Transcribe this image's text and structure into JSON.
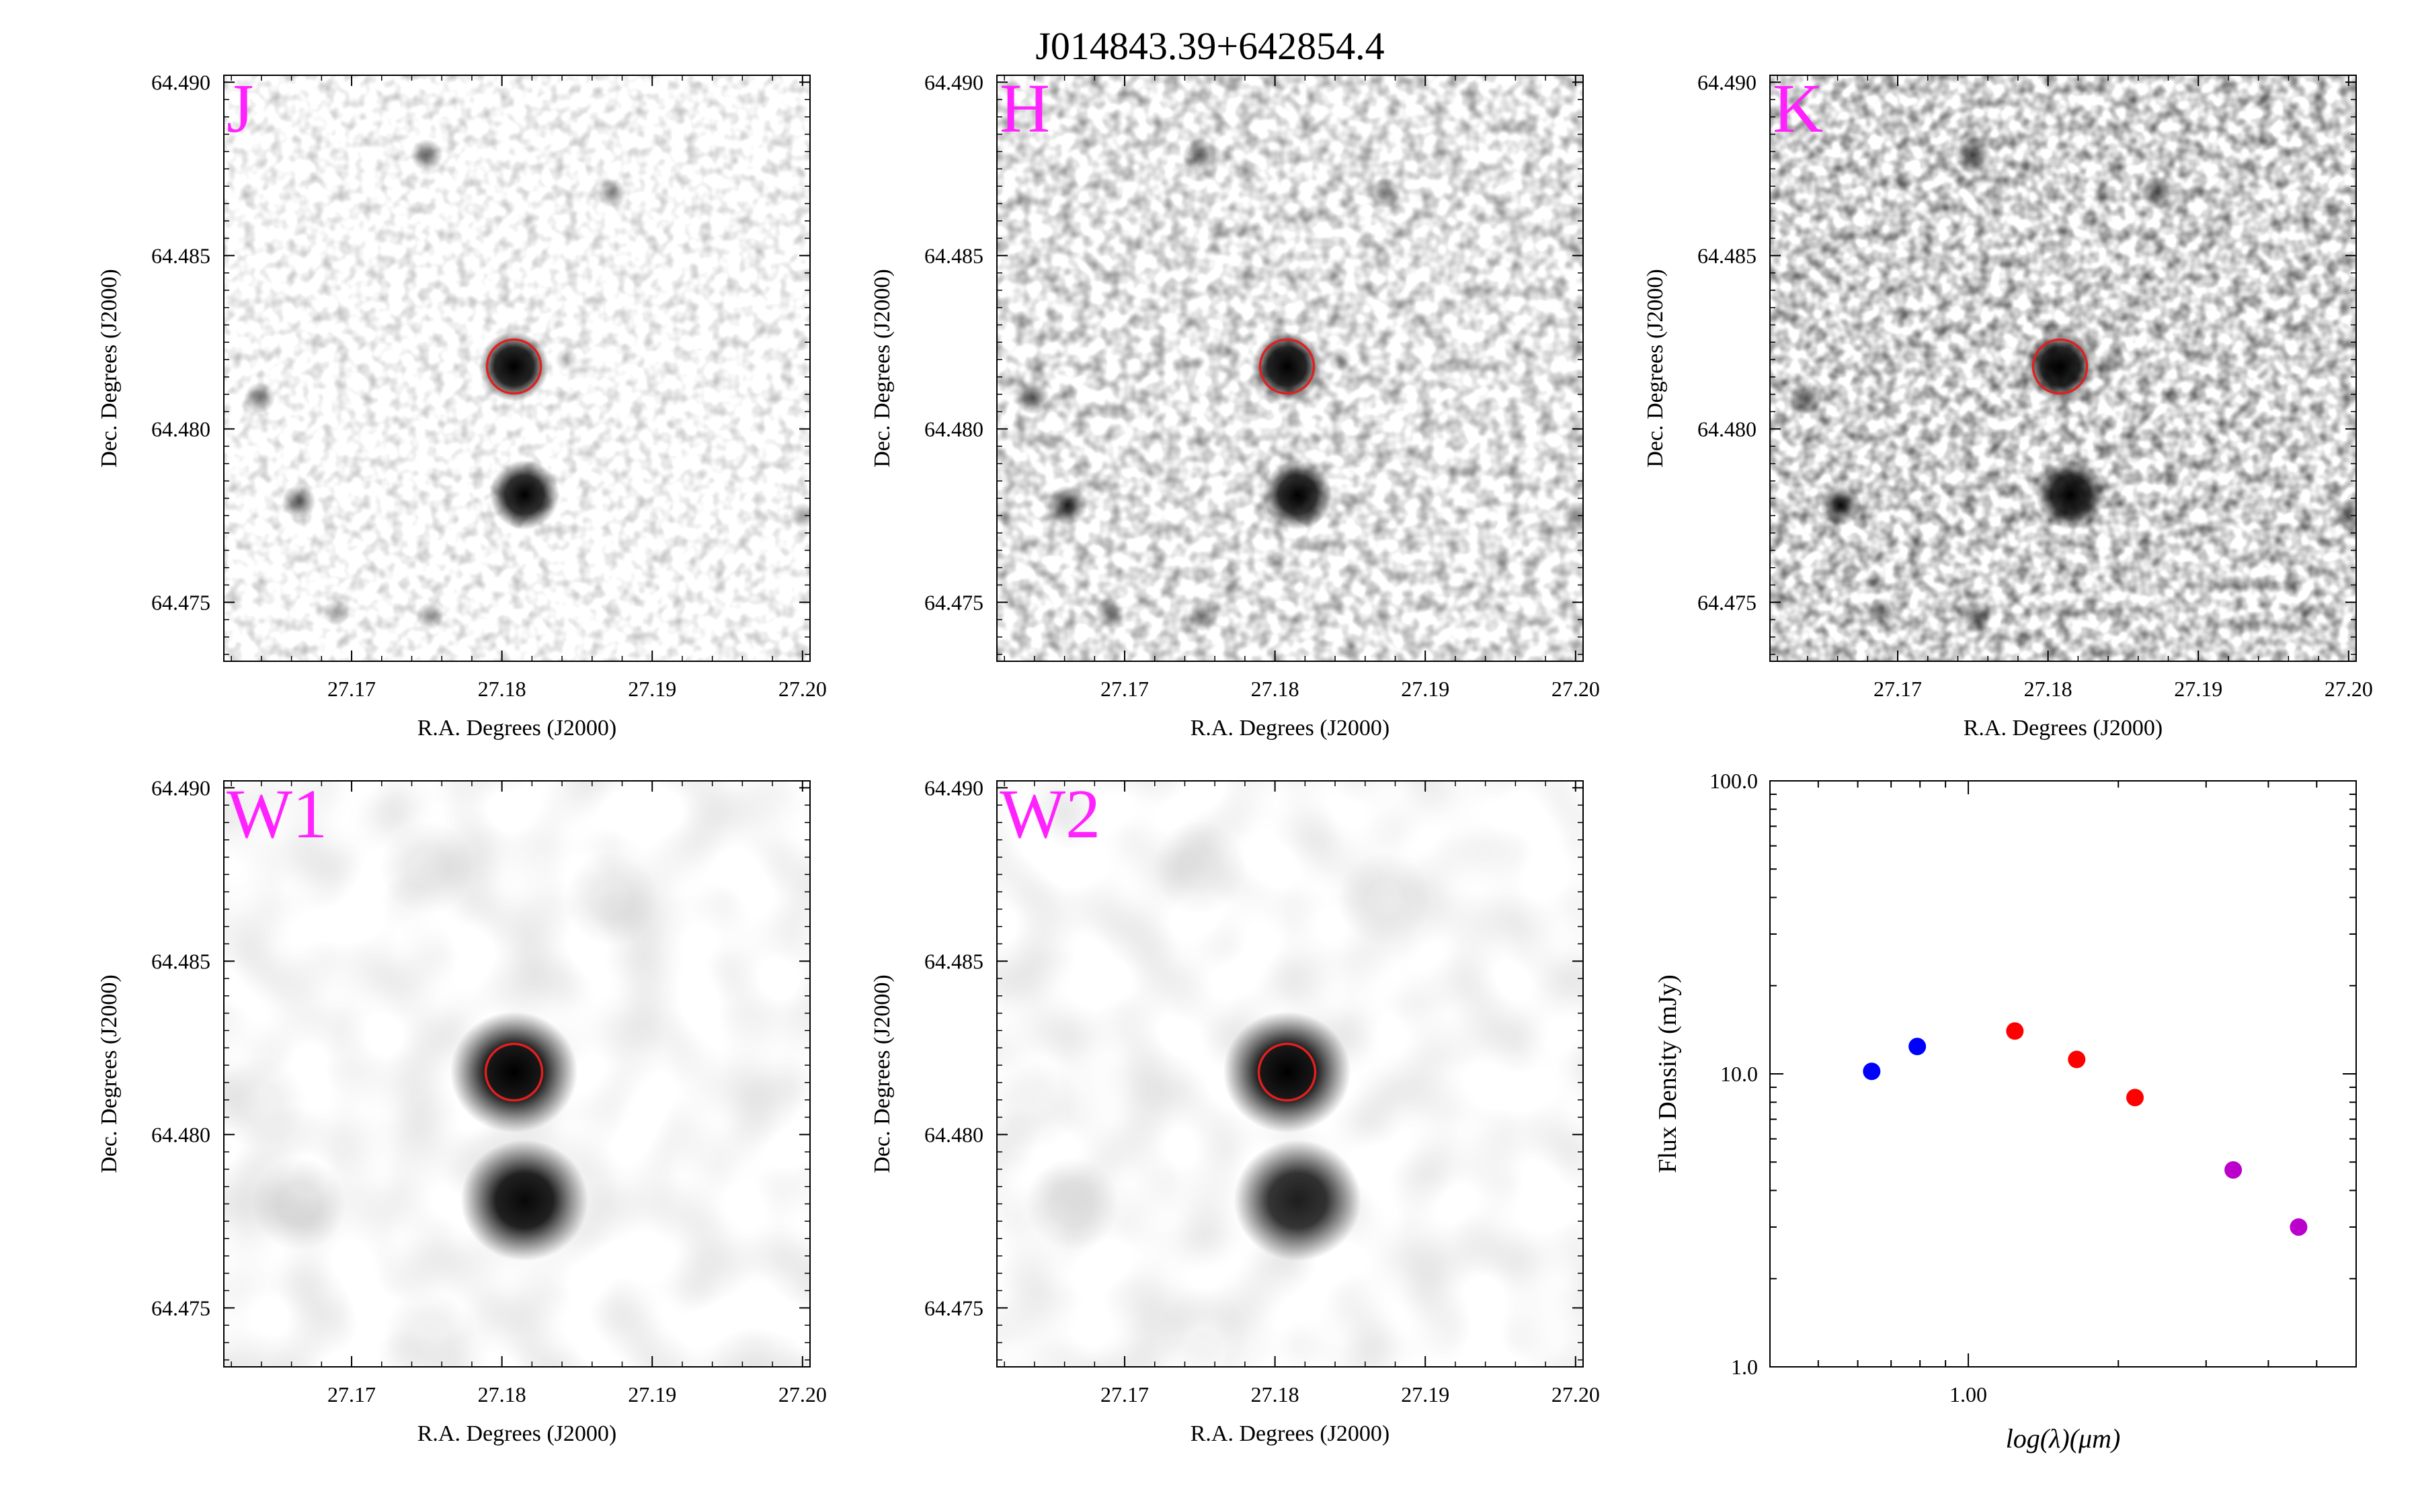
{
  "title": "J014843.39+642854.4",
  "colors": {
    "band_label": "#ff22ff",
    "target_circle": "#e02020",
    "sed_blue": "#0000ff",
    "sed_red": "#ff0000",
    "sed_magenta": "#bb00cc"
  },
  "image_axes": {
    "xlabel": "R.A. Degrees (J2000)",
    "ylabel": "Dec. Degrees (J2000)",
    "xlim": [
      27.1615,
      27.2005
    ],
    "ylim": [
      64.4733,
      64.4902
    ],
    "xticks": [
      "27.17",
      "27.18",
      "27.19",
      "27.20"
    ],
    "yticks": [
      "64.475",
      "64.480",
      "64.485",
      "64.490"
    ],
    "target": {
      "ra": 27.1808,
      "dec": 64.4818
    }
  },
  "chart_data": [
    {
      "type": "heatmap",
      "band": "J",
      "sources": [
        {
          "ra": 27.1808,
          "dec": 64.4818,
          "mag": 1.0
        },
        {
          "ra": 27.1815,
          "dec": 64.4781,
          "mag": 0.95
        },
        {
          "ra": 27.175,
          "dec": 64.4879,
          "mag": 0.55
        },
        {
          "ra": 27.1873,
          "dec": 64.4868,
          "mag": 0.45
        },
        {
          "ra": 27.1639,
          "dec": 64.4809,
          "mag": 0.5
        },
        {
          "ra": 27.1665,
          "dec": 64.4779,
          "mag": 0.6
        },
        {
          "ra": 27.169,
          "dec": 64.4747,
          "mag": 0.35
        },
        {
          "ra": 27.1752,
          "dec": 64.4746,
          "mag": 0.4
        },
        {
          "ra": 27.2,
          "dec": 64.4775,
          "mag": 0.35
        },
        {
          "ra": 27.1843,
          "dec": 64.482,
          "mag": 0.25
        },
        {
          "ra": 27.1857,
          "dec": 64.4793,
          "mag": 0.15
        }
      ]
    },
    {
      "type": "heatmap",
      "band": "H",
      "sources": [
        {
          "ra": 27.1808,
          "dec": 64.4818,
          "mag": 1.0
        },
        {
          "ra": 27.1815,
          "dec": 64.4781,
          "mag": 0.95
        },
        {
          "ra": 27.175,
          "dec": 64.4879,
          "mag": 0.6
        },
        {
          "ra": 27.1873,
          "dec": 64.4868,
          "mag": 0.5
        },
        {
          "ra": 27.1639,
          "dec": 64.4809,
          "mag": 0.6
        },
        {
          "ra": 27.1662,
          "dec": 64.4778,
          "mag": 0.8
        },
        {
          "ra": 27.169,
          "dec": 64.4747,
          "mag": 0.45
        },
        {
          "ra": 27.1752,
          "dec": 64.4746,
          "mag": 0.5
        },
        {
          "ra": 27.2,
          "dec": 64.4775,
          "mag": 0.45
        },
        {
          "ra": 27.1843,
          "dec": 64.482,
          "mag": 0.3
        },
        {
          "ra": 27.1857,
          "dec": 64.4793,
          "mag": 0.2
        }
      ]
    },
    {
      "type": "heatmap",
      "band": "K",
      "sources": [
        {
          "ra": 27.1808,
          "dec": 64.4818,
          "mag": 1.0
        },
        {
          "ra": 27.1815,
          "dec": 64.4781,
          "mag": 0.95
        },
        {
          "ra": 27.175,
          "dec": 64.4879,
          "mag": 0.7
        },
        {
          "ra": 27.1873,
          "dec": 64.4868,
          "mag": 0.6
        },
        {
          "ra": 27.1639,
          "dec": 64.4809,
          "mag": 0.6
        },
        {
          "ra": 27.1662,
          "dec": 64.4778,
          "mag": 0.85
        },
        {
          "ra": 27.169,
          "dec": 64.4747,
          "mag": 0.5
        },
        {
          "ra": 27.1752,
          "dec": 64.4746,
          "mag": 0.55
        },
        {
          "ra": 27.2,
          "dec": 64.4775,
          "mag": 0.55
        },
        {
          "ra": 27.1843,
          "dec": 64.482,
          "mag": 0.35
        },
        {
          "ra": 27.1857,
          "dec": 64.4793,
          "mag": 0.2
        }
      ]
    },
    {
      "type": "heatmap",
      "band": "W1",
      "sources": [
        {
          "ra": 27.1808,
          "dec": 64.4818,
          "mag": 1.0
        },
        {
          "ra": 27.1815,
          "dec": 64.4781,
          "mag": 0.97
        },
        {
          "ra": 27.1665,
          "dec": 64.478,
          "mag": 0.12
        },
        {
          "ra": 27.175,
          "dec": 64.4877,
          "mag": 0.08
        },
        {
          "ra": 27.1873,
          "dec": 64.4868,
          "mag": 0.08
        },
        {
          "ra": 27.1639,
          "dec": 64.4809,
          "mag": 0.06
        },
        {
          "ra": 27.1752,
          "dec": 64.4742,
          "mag": 0.06
        }
      ]
    },
    {
      "type": "heatmap",
      "band": "W2",
      "sources": [
        {
          "ra": 27.1808,
          "dec": 64.4818,
          "mag": 1.0
        },
        {
          "ra": 27.1815,
          "dec": 64.4781,
          "mag": 0.88
        },
        {
          "ra": 27.1665,
          "dec": 64.478,
          "mag": 0.1
        },
        {
          "ra": 27.175,
          "dec": 64.4877,
          "mag": 0.07
        },
        {
          "ra": 27.1873,
          "dec": 64.4868,
          "mag": 0.07
        },
        {
          "ra": 27.1639,
          "dec": 64.4809,
          "mag": 0.05
        },
        {
          "ra": 27.1752,
          "dec": 64.4742,
          "mag": 0.05
        }
      ]
    },
    {
      "type": "scatter",
      "xlabel": "log(λ)(μm)",
      "ylabel": "Flux Density (mJy)",
      "xscale": "log",
      "yscale": "log",
      "xlim": [
        0.4,
        6.0
      ],
      "ylim": [
        1.0,
        100.0
      ],
      "xticklabels": [
        {
          "value": 1.0,
          "label": "1.00"
        }
      ],
      "yticklabels": [
        {
          "value": 1.0,
          "label": "1.0"
        },
        {
          "value": 10.0,
          "label": "10.0"
        },
        {
          "value": 100.0,
          "label": "100.0"
        }
      ],
      "series": [
        {
          "color": "#0000ff",
          "points": [
            {
              "x": 0.64,
              "y": 10.2
            },
            {
              "x": 0.79,
              "y": 12.4
            }
          ]
        },
        {
          "color": "#ff0000",
          "points": [
            {
              "x": 1.24,
              "y": 14.0
            },
            {
              "x": 1.65,
              "y": 11.2
            },
            {
              "x": 2.16,
              "y": 8.3
            }
          ]
        },
        {
          "color": "#bb00cc",
          "points": [
            {
              "x": 3.4,
              "y": 4.7
            },
            {
              "x": 4.6,
              "y": 3.0
            }
          ]
        }
      ]
    }
  ]
}
